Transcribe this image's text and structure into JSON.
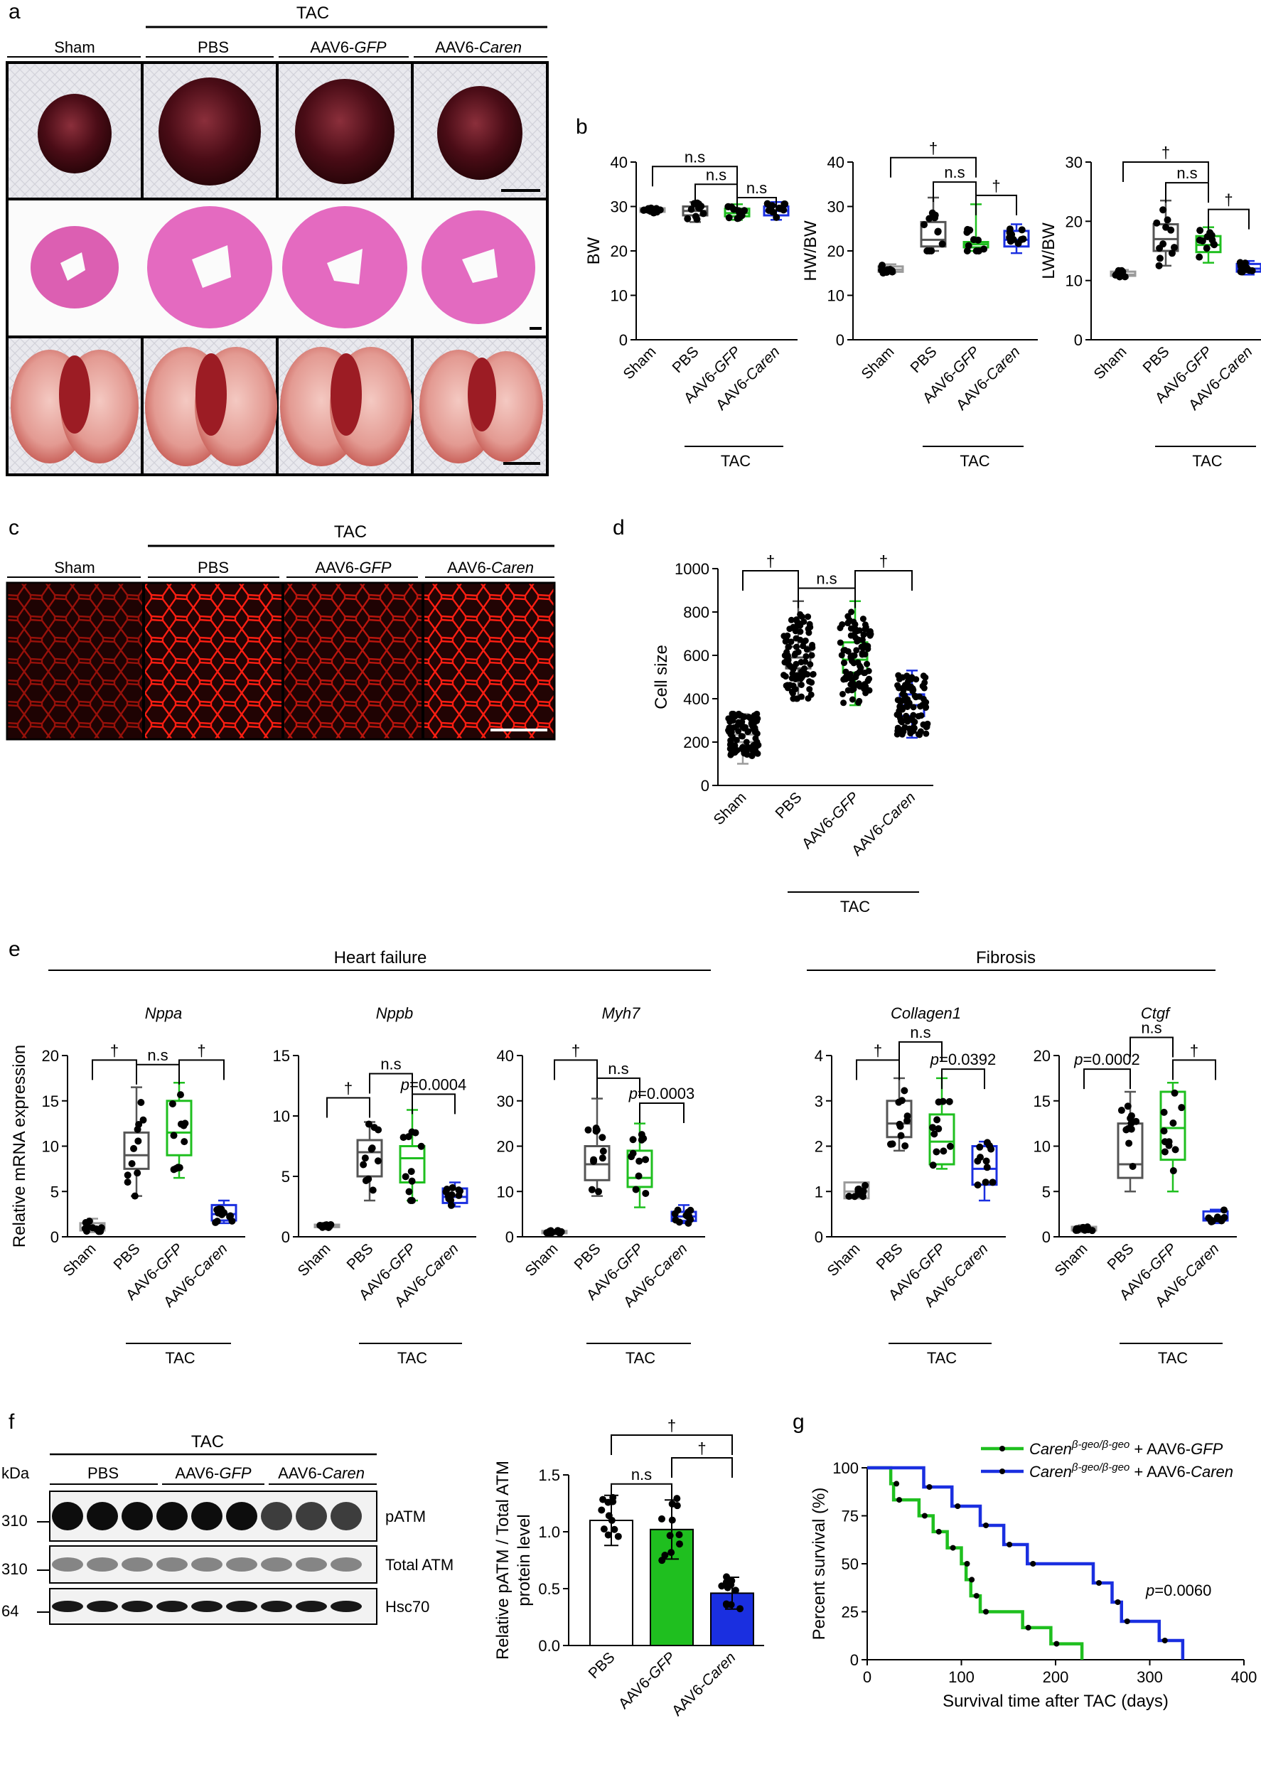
{
  "panel_letters": [
    "a",
    "b",
    "c",
    "d",
    "e",
    "f",
    "g"
  ],
  "colors": {
    "sham": "#9b9b9b",
    "pbs": "#555555",
    "gfp": "#1fbf1f",
    "caren": "#1a2fe0",
    "text": "#111111"
  },
  "photo_panels": {
    "a": {
      "group_label": "TAC",
      "headers": [
        "Sham",
        "PBS",
        "AAV6-",
        "AAV6-"
      ],
      "header_italic": [
        "",
        "",
        "GFP",
        "Caren"
      ]
    },
    "c": {
      "group_label": "TAC",
      "headers": [
        "Sham",
        "PBS",
        "AAV6-",
        "AAV6-"
      ],
      "header_italic": [
        "",
        "",
        "GFP",
        "Caren"
      ]
    }
  },
  "chart_data": [
    {
      "id": "b1",
      "type": "box",
      "ylabel": "BW",
      "ylim": [
        0,
        40
      ],
      "yticks": [
        0,
        10,
        20,
        30,
        40
      ],
      "categories": [
        "Sham",
        "PBS",
        "AAV6-GFP",
        "AAV6-Caren"
      ],
      "group_label": "TAC",
      "boxes": [
        {
          "min": 28.5,
          "q1": 28.8,
          "median": 29.2,
          "q3": 29.6,
          "max": 30
        },
        {
          "min": 26.5,
          "q1": 28,
          "median": 29,
          "q3": 30,
          "max": 31
        },
        {
          "min": 27,
          "q1": 27.8,
          "median": 28.5,
          "q3": 29.5,
          "max": 30.5
        },
        {
          "min": 27,
          "q1": 28,
          "median": 29,
          "q3": 30,
          "max": 31
        }
      ],
      "annotations": [
        {
          "from": 0,
          "to": 2,
          "text": "n.s",
          "level": 39
        },
        {
          "from": 1,
          "to": 2,
          "text": "n.s",
          "level": 35
        },
        {
          "from": 2,
          "to": 3,
          "text": "n.s",
          "level": 32
        }
      ]
    },
    {
      "id": "b2",
      "type": "box",
      "ylabel": "HW/BW",
      "ylim": [
        0,
        40
      ],
      "yticks": [
        0,
        10,
        20,
        30,
        40
      ],
      "categories": [
        "Sham",
        "PBS",
        "AAV6-GFP",
        "AAV6-Caren"
      ],
      "group_label": "TAC",
      "boxes": [
        {
          "min": 15,
          "q1": 15.3,
          "median": 15.8,
          "q3": 16.5,
          "max": 17
        },
        {
          "min": 20,
          "q1": 21,
          "median": 22.5,
          "q3": 26.5,
          "max": 32
        },
        {
          "min": 20,
          "q1": 20.8,
          "median": 21.5,
          "q3": 22,
          "max": 30.5
        },
        {
          "min": 19.5,
          "q1": 21,
          "median": 22.5,
          "q3": 24.5,
          "max": 26
        }
      ],
      "annotations": [
        {
          "from": 0,
          "to": 2,
          "text": "†",
          "level": 41
        },
        {
          "from": 1,
          "to": 2,
          "text": "n.s",
          "level": 35.5
        },
        {
          "from": 2,
          "to": 3,
          "text": "†",
          "level": 32.5
        }
      ]
    },
    {
      "id": "b3",
      "type": "box",
      "ylabel": "LW/BW",
      "ylim": [
        0,
        30
      ],
      "yticks": [
        0,
        10,
        20,
        30
      ],
      "categories": [
        "Sham",
        "PBS",
        "AAV6-GFP",
        "AAV6-Caren"
      ],
      "group_label": "TAC",
      "boxes": [
        {
          "min": 10.5,
          "q1": 10.8,
          "median": 11,
          "q3": 11.5,
          "max": 11.8
        },
        {
          "min": 12.5,
          "q1": 15,
          "median": 17,
          "q3": 19.5,
          "max": 23.5
        },
        {
          "min": 13,
          "q1": 14.8,
          "median": 16,
          "q3": 17.5,
          "max": 19
        },
        {
          "min": 11,
          "q1": 11.5,
          "median": 12,
          "q3": 12.8,
          "max": 13.3
        }
      ],
      "annotations": [
        {
          "from": 0,
          "to": 2,
          "text": "†",
          "level": 30
        },
        {
          "from": 1,
          "to": 2,
          "text": "n.s",
          "level": 26.5
        },
        {
          "from": 2,
          "to": 3,
          "text": "†",
          "level": 22
        }
      ]
    },
    {
      "id": "d",
      "type": "box",
      "ylabel": "Cell size",
      "ylim": [
        0,
        1000
      ],
      "yticks": [
        0,
        200,
        400,
        600,
        800,
        1000
      ],
      "categories": [
        "Sham",
        "PBS",
        "AAV6-GFP",
        "AAV6-Caren"
      ],
      "group_label": "TAC",
      "boxes": [
        {
          "min": 100,
          "q1": 200,
          "median": 235,
          "q3": 275,
          "max": 330
        },
        {
          "min": 400,
          "q1": 540,
          "median": 590,
          "q3": 640,
          "max": 850
        },
        {
          "min": 370,
          "q1": 520,
          "median": 580,
          "q3": 660,
          "max": 850
        },
        {
          "min": 220,
          "q1": 320,
          "median": 370,
          "q3": 420,
          "max": 530
        }
      ],
      "annotations": [
        {
          "from": 0,
          "to": 1,
          "text": "†",
          "level": 990
        },
        {
          "from": 1,
          "to": 2,
          "text": "n.s",
          "level": 910
        },
        {
          "from": 2,
          "to": 3,
          "text": "†",
          "level": 990
        }
      ]
    },
    {
      "id": "e_nppa",
      "type": "box",
      "title": "Nppa",
      "ylabel": "Relative mRNA expression",
      "ylim": [
        0,
        20
      ],
      "yticks": [
        0,
        5,
        10,
        15,
        20
      ],
      "categories": [
        "Sham",
        "PBS",
        "AAV6-GFP",
        "AAV6-Caren"
      ],
      "group_label": "TAC",
      "boxes": [
        {
          "min": 0.5,
          "q1": 0.7,
          "median": 1,
          "q3": 1.5,
          "max": 2
        },
        {
          "min": 4.5,
          "q1": 7.5,
          "median": 9,
          "q3": 11.5,
          "max": 16.5
        },
        {
          "min": 6.5,
          "q1": 9,
          "median": 11.5,
          "q3": 15,
          "max": 17
        },
        {
          "min": 1.5,
          "q1": 1.8,
          "median": 2.5,
          "q3": 3.5,
          "max": 4
        }
      ],
      "annotations": [
        {
          "from": 0,
          "to": 1,
          "text": "†",
          "level": 19.5
        },
        {
          "from": 1,
          "to": 2,
          "text": "n.s",
          "level": 19
        },
        {
          "from": 2,
          "to": 3,
          "text": "†",
          "level": 19.5
        }
      ]
    },
    {
      "id": "e_nppb",
      "type": "box",
      "title": "Nppb",
      "ylabel": "",
      "ylim": [
        0,
        15
      ],
      "yticks": [
        0,
        5,
        10,
        15
      ],
      "categories": [
        "Sham",
        "PBS",
        "AAV6-GFP",
        "AAV6-Caren"
      ],
      "group_label": "TAC",
      "boxes": [
        {
          "min": 0.7,
          "q1": 0.8,
          "median": 0.9,
          "q3": 1,
          "max": 1.1
        },
        {
          "min": 3,
          "q1": 5,
          "median": 7,
          "q3": 8,
          "max": 9.5
        },
        {
          "min": 3,
          "q1": 4.5,
          "median": 6.5,
          "q3": 7.5,
          "max": 10.5
        },
        {
          "min": 2.5,
          "q1": 2.8,
          "median": 3.3,
          "q3": 4,
          "max": 4.5
        }
      ],
      "annotations": [
        {
          "from": 0,
          "to": 1,
          "text": "†",
          "level": 11.5
        },
        {
          "from": 1,
          "to": 2,
          "text": "n.s",
          "level": 13.5
        },
        {
          "from": 2,
          "to": 3,
          "text": "p=0.0004",
          "level": 11.8
        }
      ]
    },
    {
      "id": "e_myh7",
      "type": "box",
      "title": "Myh7",
      "ylabel": "",
      "ylim": [
        0,
        40
      ],
      "yticks": [
        0,
        10,
        20,
        30,
        40
      ],
      "categories": [
        "Sham",
        "PBS",
        "AAV6-GFP",
        "AAV6-Caren"
      ],
      "group_label": "TAC",
      "boxes": [
        {
          "min": 0.5,
          "q1": 0.8,
          "median": 1,
          "q3": 1.3,
          "max": 1.5
        },
        {
          "min": 9,
          "q1": 12.5,
          "median": 16,
          "q3": 20,
          "max": 30.5
        },
        {
          "min": 6.5,
          "q1": 11,
          "median": 13,
          "q3": 19,
          "max": 25
        },
        {
          "min": 3,
          "q1": 3.5,
          "median": 4.5,
          "q3": 5.5,
          "max": 7
        }
      ],
      "annotations": [
        {
          "from": 0,
          "to": 1,
          "text": "†",
          "level": 39
        },
        {
          "from": 1,
          "to": 2,
          "text": "n.s",
          "level": 35
        },
        {
          "from": 2,
          "to": 3,
          "text": "p=0.0003",
          "level": 29.5
        }
      ]
    },
    {
      "id": "e_col1",
      "type": "box",
      "title": "Collagen1",
      "ylabel": "",
      "ylim": [
        0,
        4
      ],
      "yticks": [
        0,
        1,
        2,
        3,
        4
      ],
      "categories": [
        "Sham",
        "PBS",
        "AAV6-GFP",
        "AAV6-Caren"
      ],
      "group_label": "TAC",
      "boxes": [
        {
          "min": 0.85,
          "q1": 0.85,
          "median": 1,
          "q3": 1.2,
          "max": 1.2
        },
        {
          "min": 1.9,
          "q1": 2.2,
          "median": 2.5,
          "q3": 3,
          "max": 3.5
        },
        {
          "min": 1.5,
          "q1": 1.6,
          "median": 2.1,
          "q3": 2.7,
          "max": 3.5
        },
        {
          "min": 0.8,
          "q1": 1.15,
          "median": 1.5,
          "q3": 2,
          "max": 2.1
        }
      ],
      "annotations": [
        {
          "from": 0,
          "to": 1,
          "text": "†",
          "level": 3.9
        },
        {
          "from": 1,
          "to": 2,
          "text": "n.s",
          "level": 4.3
        },
        {
          "from": 2,
          "to": 3,
          "text": "p=0.0392",
          "level": 3.7
        }
      ]
    },
    {
      "id": "e_ctgf",
      "type": "box",
      "title": "Ctgf",
      "ylabel": "",
      "ylim": [
        0,
        20
      ],
      "yticks": [
        0,
        5,
        10,
        15,
        20
      ],
      "categories": [
        "Sham",
        "PBS",
        "AAV6-GFP",
        "AAV6-Caren"
      ],
      "group_label": "TAC",
      "boxes": [
        {
          "min": 0.5,
          "q1": 0.7,
          "median": 0.9,
          "q3": 1.1,
          "max": 1.3
        },
        {
          "min": 5,
          "q1": 6.5,
          "median": 8,
          "q3": 12.5,
          "max": 16
        },
        {
          "min": 5,
          "q1": 8.5,
          "median": 12,
          "q3": 16,
          "max": 17
        },
        {
          "min": 1.5,
          "q1": 1.8,
          "median": 2,
          "q3": 2.8,
          "max": 3
        }
      ],
      "annotations": [
        {
          "from": 0,
          "to": 1,
          "text": "p=0.0002",
          "level": 18.5
        },
        {
          "from": 1,
          "to": 2,
          "text": "n.s",
          "level": 22
        },
        {
          "from": 2,
          "to": 3,
          "text": "†",
          "level": 19.5
        }
      ]
    },
    {
      "id": "f",
      "type": "bar",
      "ylabel": "Relative pATM / Total ATM protein level",
      "ylim": [
        0,
        1.5
      ],
      "yticks": [
        "0.0",
        "0.5",
        "1.0",
        "1.5"
      ],
      "categories": [
        "PBS",
        "AAV6-GFP",
        "AAV6-Caren"
      ],
      "values": [
        1.1,
        1.02,
        0.46
      ],
      "errors": [
        0.22,
        0.26,
        0.14
      ],
      "annotations": [
        {
          "from": 0,
          "to": 2,
          "text": "†",
          "level": 1.85
        },
        {
          "from": 0,
          "to": 1,
          "text": "n.s",
          "level": 1.42
        },
        {
          "from": 1,
          "to": 2,
          "text": "†",
          "level": 1.65
        }
      ]
    },
    {
      "id": "g",
      "type": "line",
      "xlabel": "Survival time after TAC (days)",
      "ylabel": "Percent survival (%)",
      "xlim": [
        0,
        400
      ],
      "ylim": [
        0,
        100
      ],
      "xticks": [
        0,
        100,
        200,
        300,
        400
      ],
      "yticks": [
        0,
        25,
        50,
        75,
        100
      ],
      "series": [
        {
          "name": "Caren",
          "sup": "β-geo/β-geo",
          "suffix_plain": " + AAV6-",
          "suffix_italic": "GFP",
          "steps": [
            [
              0,
              100
            ],
            [
              25,
              91.7
            ],
            [
              28,
              83.3
            ],
            [
              55,
              75
            ],
            [
              70,
              66.7
            ],
            [
              85,
              58.3
            ],
            [
              100,
              50
            ],
            [
              105,
              41.7
            ],
            [
              110,
              33.3
            ],
            [
              120,
              25
            ],
            [
              165,
              16.7
            ],
            [
              195,
              8.3
            ],
            [
              228,
              0
            ]
          ]
        },
        {
          "name": "Caren",
          "sup": "β-geo/β-geo",
          "suffix_plain": " + AAV6-",
          "suffix_italic": "Caren",
          "steps": [
            [
              0,
              100
            ],
            [
              60,
              90
            ],
            [
              90,
              80
            ],
            [
              120,
              70
            ],
            [
              145,
              60
            ],
            [
              170,
              50
            ],
            [
              240,
              40
            ],
            [
              260,
              30
            ],
            [
              270,
              20
            ],
            [
              310,
              10
            ],
            [
              335,
              0
            ]
          ]
        }
      ],
      "pvalue": "p=0.0060"
    }
  ],
  "group_headers": {
    "heart_failure": "Heart failure",
    "fibrosis": "Fibrosis"
  },
  "blot": {
    "group_label": "TAC",
    "kda_label": "kDa",
    "lane_groups": [
      "PBS",
      "AAV6-",
      "AAV6-"
    ],
    "lane_groups_italic": [
      "",
      "GFP",
      "Caren"
    ],
    "bands": [
      {
        "label": "pATM",
        "kda": "310"
      },
      {
        "label": "Total ATM",
        "kda": "310"
      },
      {
        "label": "Hsc70",
        "kda": "64"
      }
    ]
  }
}
